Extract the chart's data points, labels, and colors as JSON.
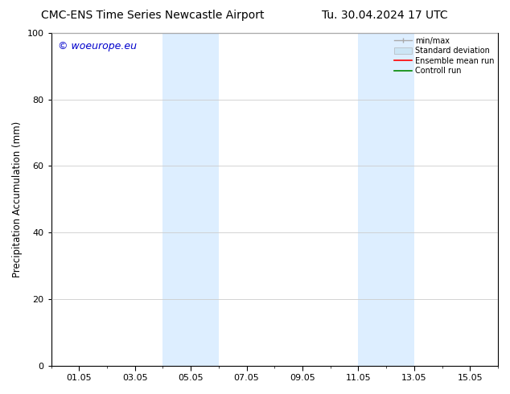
{
  "title_left": "CMC-ENS Time Series Newcastle Airport",
  "title_right": "Tu. 30.04.2024 17 UTC",
  "ylabel": "Precipitation Accumulation (mm)",
  "ylim": [
    0,
    100
  ],
  "yticks": [
    0,
    20,
    40,
    60,
    80,
    100
  ],
  "xtick_labels": [
    "01.05",
    "03.05",
    "05.05",
    "07.05",
    "09.05",
    "11.05",
    "13.05",
    "15.05"
  ],
  "xtick_positions": [
    1,
    3,
    5,
    7,
    9,
    11,
    13,
    15
  ],
  "xlim": [
    0,
    16
  ],
  "shaded_bands": [
    {
      "x_start": 4.0,
      "x_end": 6.0,
      "color": "#ddeeff"
    },
    {
      "x_start": 11.0,
      "x_end": 13.0,
      "color": "#ddeeff"
    }
  ],
  "watermark_text": "© woeurope.eu",
  "watermark_color": "#0000cc",
  "background_color": "#ffffff",
  "title_fontsize": 10,
  "axis_fontsize": 8.5,
  "tick_fontsize": 8,
  "watermark_fontsize": 9,
  "grid_color": "#cccccc",
  "spine_color": "#000000",
  "legend_font_size": 7,
  "minmax_color": "#aaaaaa",
  "std_color": "#cce5f5",
  "ensemble_color": "#ff0000",
  "control_color": "#008800"
}
